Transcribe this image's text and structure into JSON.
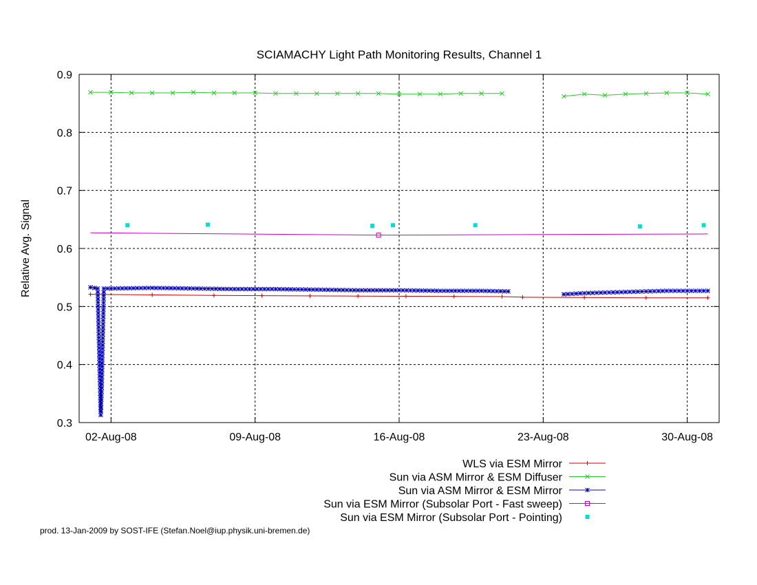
{
  "chart_data": {
    "type": "line",
    "title": "SCIAMACHY Light Path Monitoring Results, Channel 1",
    "xlabel": "",
    "ylabel": "Relative Avg. Signal",
    "x_axis": {
      "type": "date",
      "range": [
        "2008-08-01",
        "2008-08-31"
      ],
      "ticks": [
        {
          "value": "2008-08-02",
          "label": "02-Aug-08"
        },
        {
          "value": "2008-08-09",
          "label": "09-Aug-08"
        },
        {
          "value": "2008-08-16",
          "label": "16-Aug-08"
        },
        {
          "value": "2008-08-23",
          "label": "23-Aug-08"
        },
        {
          "value": "2008-08-30",
          "label": "30-Aug-08"
        }
      ]
    },
    "ylim": [
      0.3,
      0.9
    ],
    "yticks": [
      "0.3",
      "0.4",
      "0.5",
      "0.6",
      "0.7",
      "0.8",
      "0.9"
    ],
    "grid": true,
    "legend_position": "below",
    "series": [
      {
        "name": "WLS via ESM Mirror",
        "color": "#cc0000",
        "marker": "plus",
        "style": "line",
        "points": [
          [
            "2008-08-01",
            0.521
          ],
          [
            "2008-08-07",
            0.519
          ],
          [
            "2008-08-14",
            0.518
          ],
          [
            "2008-08-21",
            0.517
          ],
          [
            "2008-08-22",
            0.516
          ],
          [
            "2008-08-28",
            0.515
          ],
          [
            "2008-08-31",
            0.515
          ]
        ]
      },
      {
        "name": "Sun via ASM Mirror & ESM Diffuser",
        "color": "#22cc22",
        "marker": "cross",
        "style": "line",
        "segments": [
          [
            [
              "2008-08-01",
              0.869
            ],
            [
              "2008-08-02",
              0.869
            ],
            [
              "2008-08-03",
              0.868
            ],
            [
              "2008-08-04",
              0.868
            ],
            [
              "2008-08-05",
              0.868
            ],
            [
              "2008-08-06",
              0.869
            ],
            [
              "2008-08-07",
              0.868
            ],
            [
              "2008-08-08",
              0.868
            ],
            [
              "2008-08-09",
              0.868
            ],
            [
              "2008-08-10",
              0.867
            ],
            [
              "2008-08-11",
              0.867
            ],
            [
              "2008-08-12",
              0.867
            ],
            [
              "2008-08-13",
              0.867
            ],
            [
              "2008-08-14",
              0.867
            ],
            [
              "2008-08-15",
              0.867
            ],
            [
              "2008-08-16",
              0.866
            ],
            [
              "2008-08-17",
              0.866
            ],
            [
              "2008-08-18",
              0.866
            ],
            [
              "2008-08-19",
              0.867
            ],
            [
              "2008-08-20",
              0.867
            ],
            [
              "2008-08-21",
              0.867
            ]
          ],
          [
            [
              "2008-08-24",
              0.862
            ],
            [
              "2008-08-25",
              0.866
            ],
            [
              "2008-08-26",
              0.864
            ],
            [
              "2008-08-27",
              0.866
            ],
            [
              "2008-08-28",
              0.867
            ],
            [
              "2008-08-29",
              0.868
            ],
            [
              "2008-08-30",
              0.868
            ],
            [
              "2008-08-31",
              0.866
            ]
          ]
        ]
      },
      {
        "name": "Sun via ASM Mirror & ESM Mirror",
        "color": "#0000bb",
        "marker": "star",
        "style": "line",
        "segments": [
          [
            [
              "2008-08-01",
              0.533
            ],
            [
              "2008-08-01.2",
              0.532
            ],
            [
              "2008-08-01.35",
              0.531
            ],
            [
              "2008-08-01.45",
              0.38
            ],
            [
              "2008-08-01.5",
              0.313
            ],
            [
              "2008-08-01.55",
              0.36
            ],
            [
              "2008-08-01.65",
              0.531
            ],
            [
              "2008-08-02",
              0.531
            ],
            [
              "2008-08-04",
              0.532
            ],
            [
              "2008-08-06",
              0.531
            ],
            [
              "2008-08-08",
              0.53
            ],
            [
              "2008-08-10",
              0.53
            ],
            [
              "2008-08-12",
              0.529
            ],
            [
              "2008-08-14",
              0.528
            ],
            [
              "2008-08-16",
              0.528
            ],
            [
              "2008-08-18",
              0.527
            ],
            [
              "2008-08-20",
              0.527
            ],
            [
              "2008-08-21.3",
              0.526
            ]
          ],
          [
            [
              "2008-08-24",
              0.521
            ],
            [
              "2008-08-25",
              0.523
            ],
            [
              "2008-08-26",
              0.524
            ],
            [
              "2008-08-27",
              0.525
            ],
            [
              "2008-08-28",
              0.526
            ],
            [
              "2008-08-29",
              0.527
            ],
            [
              "2008-08-30",
              0.527
            ],
            [
              "2008-08-31",
              0.527
            ]
          ]
        ]
      },
      {
        "name": "Sun via ESM Mirror (Subsolar Port - Fast sweep)",
        "color": "#cc00cc",
        "marker": "square",
        "style": "line",
        "points": [
          [
            "2008-08-01",
            0.627
          ],
          [
            "2008-08-08",
            0.625
          ],
          [
            "2008-08-15",
            0.623
          ],
          [
            "2008-08-16",
            0.623
          ],
          [
            "2008-08-23",
            0.624
          ],
          [
            "2008-08-31",
            0.625
          ]
        ],
        "marked_points": [
          [
            "2008-08-15",
            0.623
          ]
        ]
      },
      {
        "name": "Sun via ESM Mirror (Subsolar Port - Pointing)",
        "color": "#00dddd",
        "marker": "filled-square",
        "style": "points",
        "points": [
          [
            "2008-08-02.8",
            0.64
          ],
          [
            "2008-08-06.7",
            0.641
          ],
          [
            "2008-08-14.7",
            0.639
          ],
          [
            "2008-08-15.7",
            0.64
          ],
          [
            "2008-08-19.7",
            0.64
          ],
          [
            "2008-08-27.7",
            0.638
          ],
          [
            "2008-08-30.8",
            0.64
          ]
        ]
      }
    ],
    "footer": "prod. 13-Jan-2009 by SOST-IFE (Stefan.Noel@iup.physik.uni-bremen.de)"
  }
}
